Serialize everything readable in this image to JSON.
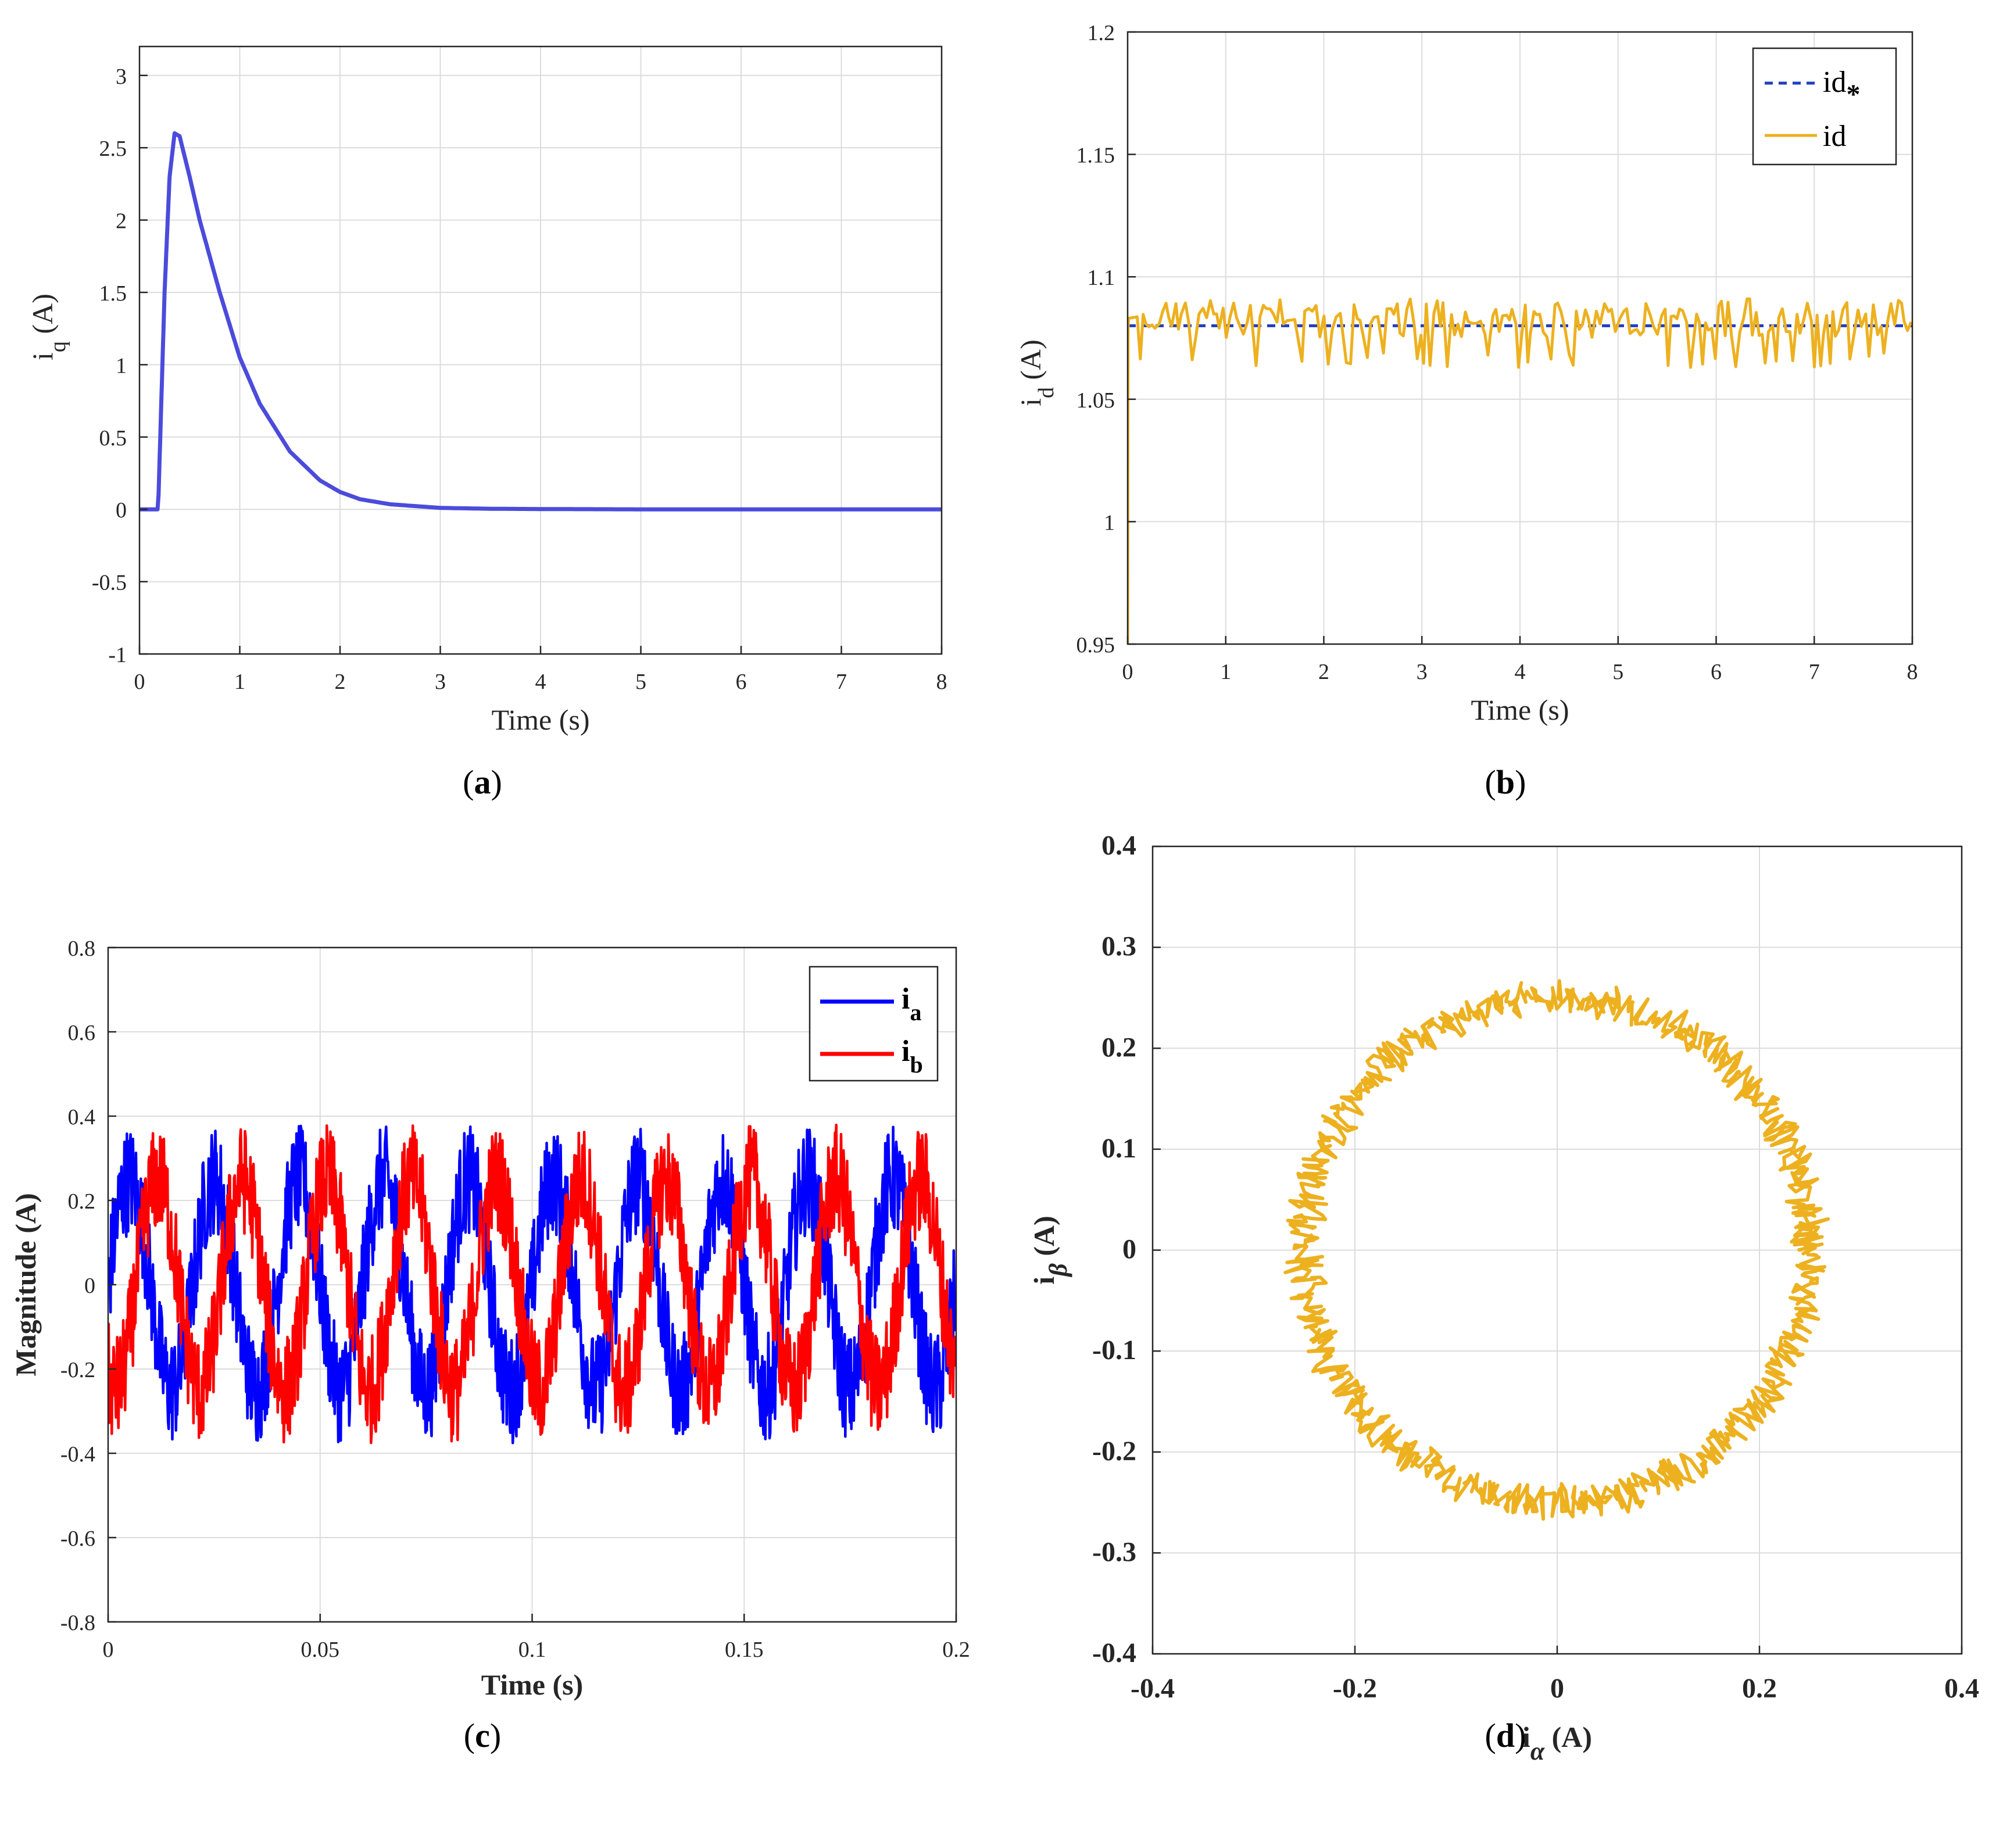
{
  "chart_data": [
    {
      "id": "a",
      "type": "line",
      "caption": "(a)",
      "xlabel": "Time (s)",
      "ylabel": "i_q (A)",
      "xlim": [
        0,
        8
      ],
      "ylim": [
        -1,
        3.2
      ],
      "xticks": [
        "0",
        "1",
        "2",
        "3",
        "4",
        "5",
        "6",
        "7",
        "8"
      ],
      "yticks": [
        "-1",
        "-0.5",
        "0",
        "0.5",
        "1",
        "1.5",
        "2",
        "2.5",
        "3"
      ],
      "grid": true,
      "series": [
        {
          "color": "#4b4bdc",
          "x": [
            0,
            0.18,
            0.19,
            0.25,
            0.3,
            0.35,
            0.4,
            0.5,
            0.6,
            0.8,
            1.0,
            1.2,
            1.5,
            1.8,
            2.0,
            2.2,
            2.5,
            3.0,
            3.5,
            4.0,
            5.0,
            6.0,
            7.0,
            8.0
          ],
          "y": [
            0,
            0,
            0.1,
            1.5,
            2.3,
            2.6,
            2.58,
            2.3,
            2.0,
            1.5,
            1.05,
            0.73,
            0.4,
            0.2,
            0.12,
            0.07,
            0.035,
            0.01,
            0.004,
            0.002,
            0.0,
            0.0,
            0.0,
            0.0
          ]
        }
      ]
    },
    {
      "id": "b",
      "type": "line",
      "caption": "(b)",
      "xlabel": "Time (s)",
      "ylabel": "i_d (A)",
      "xlim": [
        0,
        8
      ],
      "ylim": [
        0.95,
        1.2
      ],
      "xticks": [
        "0",
        "1",
        "2",
        "3",
        "4",
        "5",
        "6",
        "7",
        "8"
      ],
      "yticks": [
        "0.95",
        "1",
        "1.05",
        "1.1",
        "1.15",
        "1.2"
      ],
      "grid": true,
      "legend_position": "top-right",
      "series": [
        {
          "name": "id*",
          "color": "#1f3fbf",
          "style": "dashed",
          "reference_value": 1.08
        },
        {
          "name": "id",
          "color": "#edb120",
          "style": "solid",
          "mean": 1.08,
          "ripple_min": 1.063,
          "ripple_max": 1.091
        }
      ]
    },
    {
      "id": "c",
      "type": "line",
      "caption": "(c)",
      "xlabel": "Time (s)",
      "ylabel": "Magnitude (A)",
      "xlim": [
        0,
        0.2
      ],
      "ylim": [
        -0.8,
        0.8
      ],
      "xticks": [
        "0",
        "0.05",
        "0.1",
        "0.15",
        "0.2"
      ],
      "yticks": [
        "-0.8",
        "-0.6",
        "-0.4",
        "-0.2",
        "0",
        "0.2",
        "0.4",
        "0.6",
        "0.8"
      ],
      "grid": true,
      "legend_position": "top-right",
      "series": [
        {
          "name": "i_a",
          "color": "#0000ff",
          "frequency_hz": 50,
          "amplitude": 0.25,
          "phase_deg": 0
        },
        {
          "name": "i_b",
          "color": "#ff0000",
          "frequency_hz": 50,
          "amplitude": 0.25,
          "phase_deg": -120
        }
      ]
    },
    {
      "id": "d",
      "type": "scatter",
      "caption": "(d)",
      "xlabel": "i_α (A)",
      "ylabel": "i_β (A)",
      "xlim": [
        -0.4,
        0.4
      ],
      "ylim": [
        -0.4,
        0.4
      ],
      "xticks": [
        "-0.4",
        "-0.2",
        "0",
        "0.2",
        "0.4"
      ],
      "yticks": [
        "-0.4",
        "-0.3",
        "-0.2",
        "-0.1",
        "0",
        "0.1",
        "0.2",
        "0.3",
        "0.4"
      ],
      "grid": true,
      "series": [
        {
          "color": "#edb120",
          "shape": "circle",
          "radius": 0.25
        }
      ]
    }
  ]
}
